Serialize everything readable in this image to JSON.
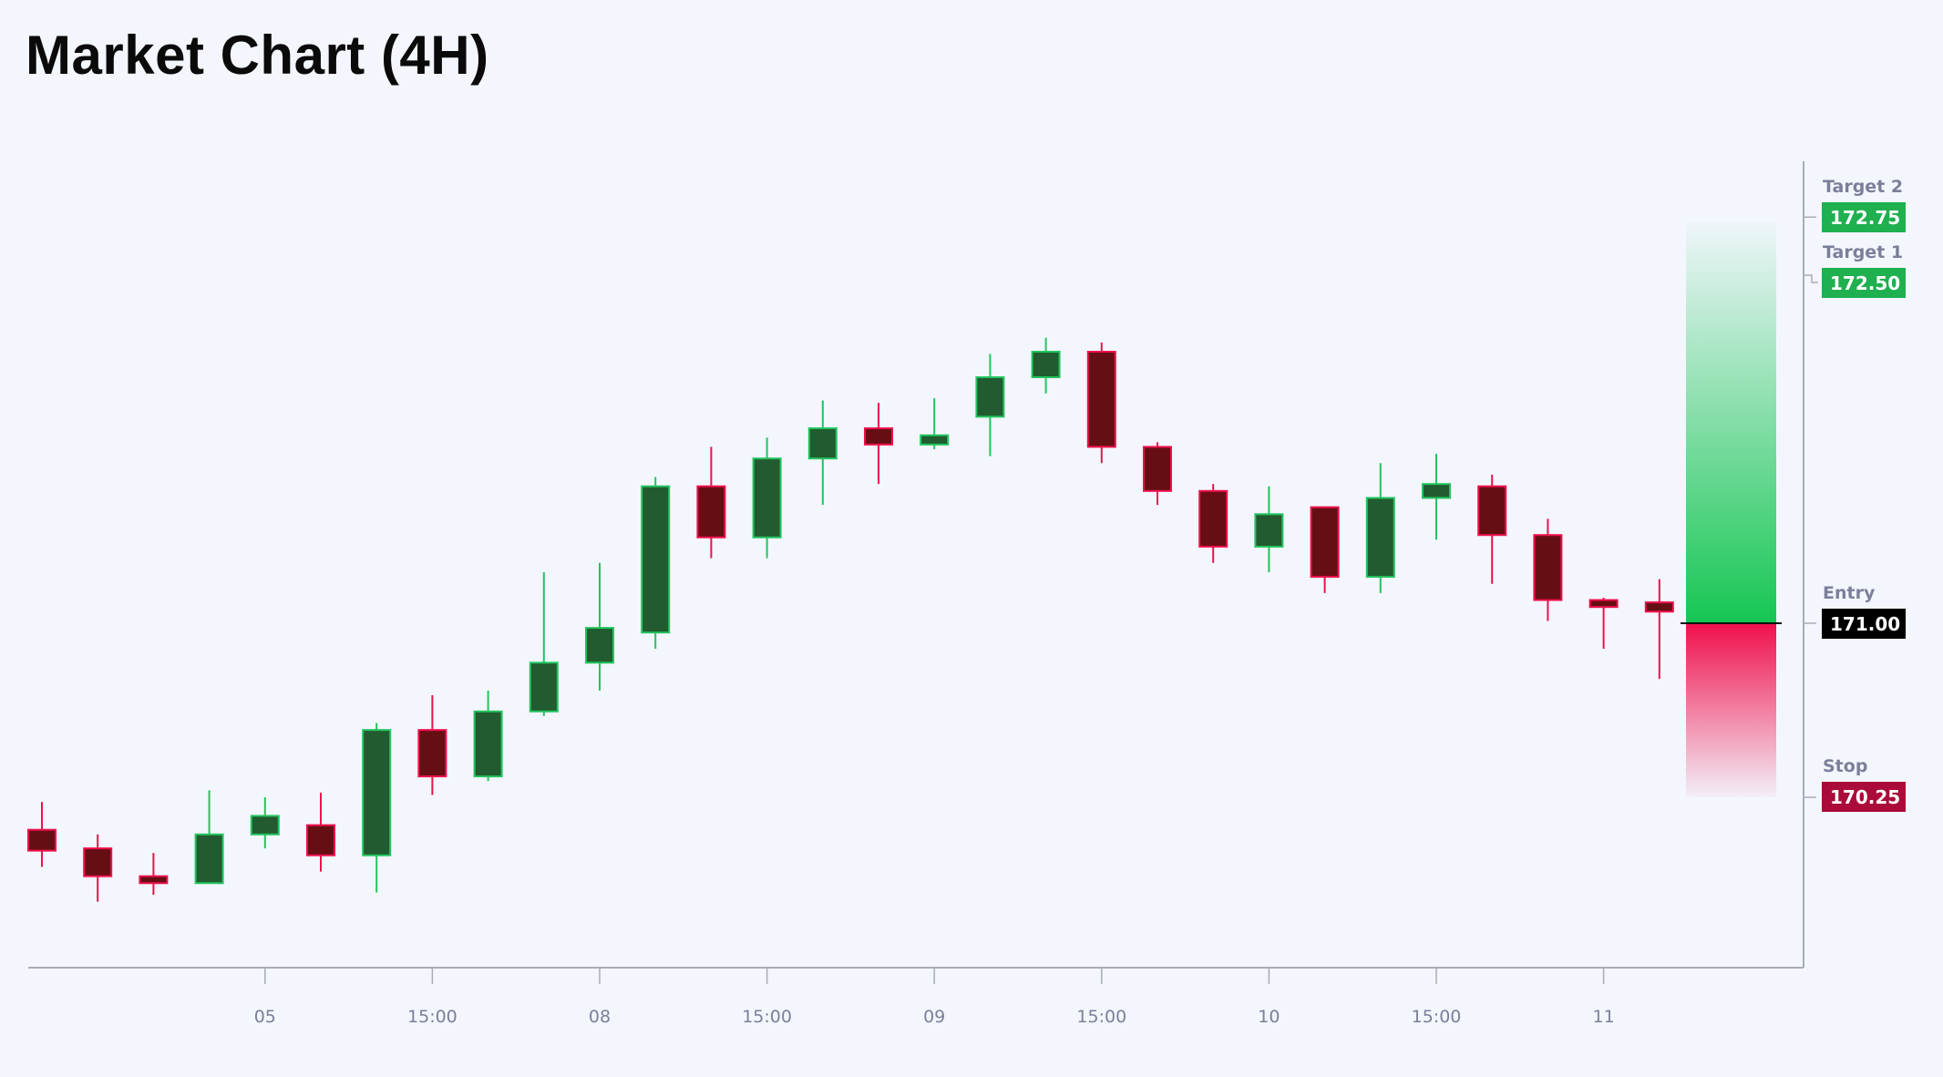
{
  "title": "Market Chart (4H)",
  "chart_data": {
    "type": "candlestick",
    "title": "Market Chart (4H)",
    "x_tick_labels": [
      {
        "index": 4,
        "label": "05"
      },
      {
        "index": 7,
        "label": "15:00"
      },
      {
        "index": 10,
        "label": "08"
      },
      {
        "index": 13,
        "label": "15:00"
      },
      {
        "index": 16,
        "label": "09"
      },
      {
        "index": 19,
        "label": "15:00"
      },
      {
        "index": 22,
        "label": "10"
      },
      {
        "index": 25,
        "label": "15:00"
      },
      {
        "index": 28,
        "label": "11"
      }
    ],
    "ylim": [
      169.5,
      173.0
    ],
    "grid": false,
    "candles": [
      {
        "o": 170.11,
        "h": 170.23,
        "l": 169.95,
        "c": 170.02
      },
      {
        "o": 170.03,
        "h": 170.09,
        "l": 169.8,
        "c": 169.91
      },
      {
        "o": 169.91,
        "h": 170.01,
        "l": 169.83,
        "c": 169.88
      },
      {
        "o": 169.88,
        "h": 170.28,
        "l": 169.88,
        "c": 170.09
      },
      {
        "o": 170.09,
        "h": 170.25,
        "l": 170.03,
        "c": 170.17
      },
      {
        "o": 170.13,
        "h": 170.27,
        "l": 169.93,
        "c": 170.0
      },
      {
        "o": 170.0,
        "h": 170.57,
        "l": 169.84,
        "c": 170.54
      },
      {
        "o": 170.54,
        "h": 170.69,
        "l": 170.26,
        "c": 170.34
      },
      {
        "o": 170.34,
        "h": 170.71,
        "l": 170.32,
        "c": 170.62
      },
      {
        "o": 170.62,
        "h": 171.22,
        "l": 170.6,
        "c": 170.83
      },
      {
        "o": 170.83,
        "h": 171.26,
        "l": 170.71,
        "c": 170.98
      },
      {
        "o": 170.96,
        "h": 171.63,
        "l": 170.89,
        "c": 171.59
      },
      {
        "o": 171.59,
        "h": 171.76,
        "l": 171.28,
        "c": 171.37
      },
      {
        "o": 171.37,
        "h": 171.8,
        "l": 171.28,
        "c": 171.71
      },
      {
        "o": 171.71,
        "h": 171.96,
        "l": 171.51,
        "c": 171.84
      },
      {
        "o": 171.84,
        "h": 171.95,
        "l": 171.6,
        "c": 171.77
      },
      {
        "o": 171.77,
        "h": 171.97,
        "l": 171.75,
        "c": 171.81
      },
      {
        "o": 171.89,
        "h": 172.16,
        "l": 171.72,
        "c": 172.06
      },
      {
        "o": 172.06,
        "h": 172.23,
        "l": 171.99,
        "c": 172.17
      },
      {
        "o": 172.17,
        "h": 172.21,
        "l": 171.69,
        "c": 171.76
      },
      {
        "o": 171.76,
        "h": 171.78,
        "l": 171.51,
        "c": 171.57
      },
      {
        "o": 171.57,
        "h": 171.6,
        "l": 171.26,
        "c": 171.33
      },
      {
        "o": 171.33,
        "h": 171.59,
        "l": 171.22,
        "c": 171.47
      },
      {
        "o": 171.5,
        "h": 171.5,
        "l": 171.13,
        "c": 171.2
      },
      {
        "o": 171.2,
        "h": 171.69,
        "l": 171.13,
        "c": 171.54
      },
      {
        "o": 171.54,
        "h": 171.73,
        "l": 171.36,
        "c": 171.6
      },
      {
        "o": 171.59,
        "h": 171.64,
        "l": 171.17,
        "c": 171.38
      },
      {
        "o": 171.38,
        "h": 171.45,
        "l": 171.01,
        "c": 171.1
      },
      {
        "o": 171.1,
        "h": 171.11,
        "l": 170.89,
        "c": 171.07
      },
      {
        "o": 171.09,
        "h": 171.19,
        "l": 170.76,
        "c": 171.05
      }
    ],
    "levels": [
      {
        "name": "Target 2",
        "value": "172.75",
        "price": 172.75,
        "color": "#1fb04f"
      },
      {
        "name": "Target 1",
        "value": "172.50",
        "price": 172.5,
        "color": "#1fb04f"
      },
      {
        "name": "Entry",
        "value": "171.00",
        "price": 171.0,
        "color": "#000000"
      },
      {
        "name": "Stop",
        "value": "170.25",
        "price": 170.25,
        "color": "#ab0b3a"
      }
    ],
    "risk_reward_zone": {
      "profit_to": 172.75,
      "entry": 171.0,
      "stop": 170.25
    },
    "colors": {
      "up_body": "#225b30",
      "up_border": "#22c55e",
      "down_body": "#650f14",
      "down_border": "#f0104c",
      "profit": "#16c653",
      "loss": "#f0104c"
    }
  }
}
